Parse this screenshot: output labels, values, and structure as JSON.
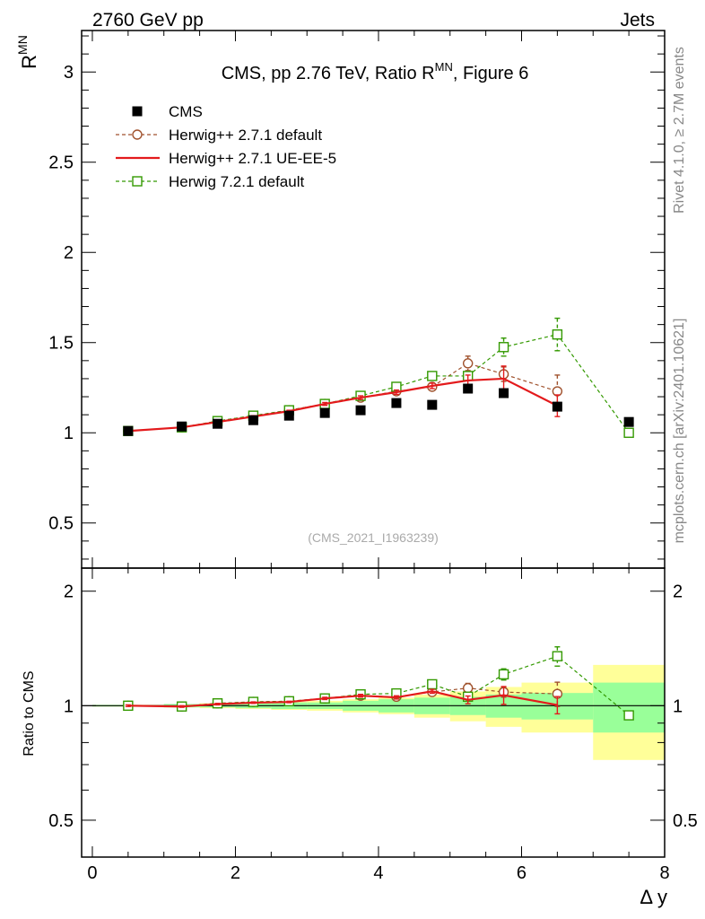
{
  "header": {
    "left": "2760 GeV pp",
    "right": "Jets"
  },
  "side": {
    "top": "Rivet 4.1.0, ≥ 2.7M events",
    "bottom": "mcplots.cern.ch [arXiv:2401.10621]"
  },
  "watermark": "(CMS_2021_I1963239)",
  "chart_data": {
    "type": "scatter",
    "title": "CMS, pp 2.76 TeV, Ratio R",
    "title_sup": "MN",
    "title_suffix": ", Figure 6",
    "xlabel": "Δ y",
    "ylabel": "R",
    "ylabel_sup": "MN",
    "ratio_ylabel": "Ratio to CMS",
    "xlim": [
      -0.15,
      8.0
    ],
    "ylim": [
      0.25,
      3.23
    ],
    "ratio_ylim": [
      0.4,
      2.3
    ],
    "xticks": [
      "0",
      "2",
      "4",
      "6",
      "8"
    ],
    "yticks": [
      "0.5",
      "1",
      "1.5",
      "2",
      "2.5",
      "3"
    ],
    "ratio_yticks": [
      "0.5",
      "1",
      "2"
    ],
    "legend": [
      "CMS",
      "Herwig++ 2.7.1 default",
      "Herwig++ 2.7.1 UE-EE-5",
      "Herwig 7.2.1 default"
    ],
    "colors": {
      "cms": "#000000",
      "hpp_default": "#a0522d",
      "hpp_ueee5": "#e31a1c",
      "h7": "#339900",
      "band_stat": "#99ff99",
      "band_total": "#ffff99"
    },
    "cms": {
      "x": [
        0.5,
        1.25,
        1.75,
        2.25,
        2.75,
        3.25,
        3.75,
        4.25,
        4.75,
        5.25,
        5.75,
        6.5,
        7.5
      ],
      "y": [
        1.01,
        1.035,
        1.05,
        1.07,
        1.095,
        1.11,
        1.125,
        1.165,
        1.155,
        1.245,
        1.22,
        1.145,
        1.06
      ],
      "ratio_stat": [
        [
          0.0,
          1.0,
          0.005
        ],
        [
          1.0,
          1.5,
          0.01
        ],
        [
          1.5,
          2.0,
          0.01
        ],
        [
          2.0,
          2.5,
          0.015
        ],
        [
          2.5,
          3.0,
          0.02
        ],
        [
          3.0,
          3.5,
          0.02
        ],
        [
          3.5,
          4.0,
          0.03
        ],
        [
          4.0,
          4.5,
          0.04
        ],
        [
          4.5,
          5.0,
          0.05
        ],
        [
          5.0,
          5.5,
          0.055
        ],
        [
          5.5,
          6.0,
          0.07
        ],
        [
          6.0,
          7.0,
          0.08
        ],
        [
          7.0,
          8.0,
          0.15
        ]
      ],
      "ratio_total": [
        [
          0.0,
          1.0,
          0.005
        ],
        [
          1.0,
          1.5,
          0.01
        ],
        [
          1.5,
          2.0,
          0.015
        ],
        [
          2.0,
          2.5,
          0.02
        ],
        [
          2.5,
          3.0,
          0.025
        ],
        [
          3.0,
          3.5,
          0.03
        ],
        [
          3.5,
          4.0,
          0.04
        ],
        [
          4.0,
          4.5,
          0.05
        ],
        [
          4.5,
          5.0,
          0.07
        ],
        [
          5.0,
          5.5,
          0.09
        ],
        [
          5.5,
          6.0,
          0.12
        ],
        [
          6.0,
          7.0,
          0.15
        ],
        [
          7.0,
          8.0,
          0.28
        ]
      ]
    },
    "series": [
      {
        "name": "Herwig++ 2.7.1 default",
        "key": "hpp_default",
        "marker": "circle",
        "dash": true,
        "x": [
          0.5,
          1.25,
          1.75,
          2.25,
          2.75,
          3.25,
          3.75,
          4.25,
          4.75,
          5.25,
          5.75,
          6.5
        ],
        "y": [
          1.01,
          1.03,
          1.065,
          1.095,
          1.125,
          1.16,
          1.195,
          1.23,
          1.255,
          1.385,
          1.325,
          1.23
        ],
        "err": [
          0.005,
          0.005,
          0.005,
          0.005,
          0.005,
          0.008,
          0.01,
          0.012,
          0.015,
          0.04,
          0.04,
          0.09
        ]
      },
      {
        "name": "Herwig++ 2.7.1 UE-EE-5",
        "key": "hpp_ueee5",
        "marker": "none",
        "dash": false,
        "x": [
          0.5,
          1.25,
          1.75,
          2.25,
          2.75,
          3.25,
          3.75,
          4.25,
          4.75,
          5.25,
          5.75,
          6.5
        ],
        "y": [
          1.01,
          1.03,
          1.06,
          1.09,
          1.12,
          1.16,
          1.195,
          1.225,
          1.26,
          1.29,
          1.3,
          1.15
        ],
        "err": [
          0.005,
          0.005,
          0.005,
          0.005,
          0.005,
          0.008,
          0.01,
          0.012,
          0.015,
          0.03,
          0.07,
          0.06
        ]
      },
      {
        "name": "Herwig 7.2.1 default",
        "key": "h7",
        "marker": "square",
        "dash": true,
        "x": [
          0.5,
          1.25,
          1.75,
          2.25,
          2.75,
          3.25,
          3.75,
          4.25,
          4.75,
          5.25,
          5.75,
          6.5,
          7.5
        ],
        "y": [
          1.01,
          1.03,
          1.065,
          1.095,
          1.125,
          1.16,
          1.205,
          1.255,
          1.315,
          1.315,
          1.475,
          1.545,
          1.0
        ],
        "err": [
          0.005,
          0.005,
          0.005,
          0.005,
          0.005,
          0.008,
          0.01,
          0.015,
          0.02,
          0.02,
          0.05,
          0.09,
          0.0
        ]
      }
    ]
  }
}
